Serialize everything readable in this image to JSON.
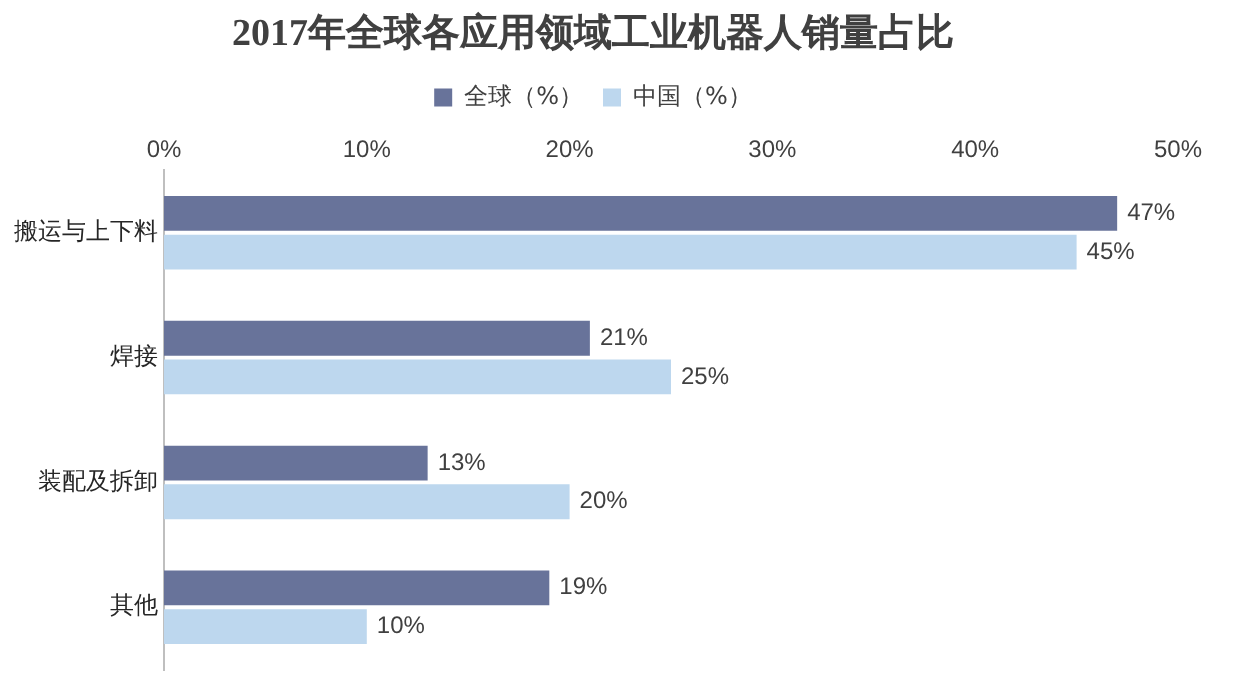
{
  "chart_data": {
    "type": "bar",
    "orientation": "horizontal",
    "title": "2017年全球各应用领域工业机器人销量占比",
    "categories": [
      "搬运与上下料",
      "焊接",
      "装配及拆卸",
      "其他"
    ],
    "series": [
      {
        "name": "全球（%）",
        "color": "#68739a",
        "values": [
          47,
          21,
          13,
          19
        ],
        "value_labels": [
          "47%",
          "21%",
          "13%",
          "19%"
        ]
      },
      {
        "name": "中国（%）",
        "color": "#bdd7ee",
        "values": [
          45,
          25,
          20,
          10
        ],
        "value_labels": [
          "45%",
          "25%",
          "20%",
          "10%"
        ]
      }
    ],
    "xlim": [
      0,
      50
    ],
    "xticks": [
      {
        "value": 0,
        "label": "0%"
      },
      {
        "value": 10,
        "label": "10%"
      },
      {
        "value": 20,
        "label": "20%"
      },
      {
        "value": 30,
        "label": "30%"
      },
      {
        "value": 40,
        "label": "40%"
      },
      {
        "value": 50,
        "label": "50%"
      }
    ],
    "grid": false,
    "legend": "top"
  }
}
